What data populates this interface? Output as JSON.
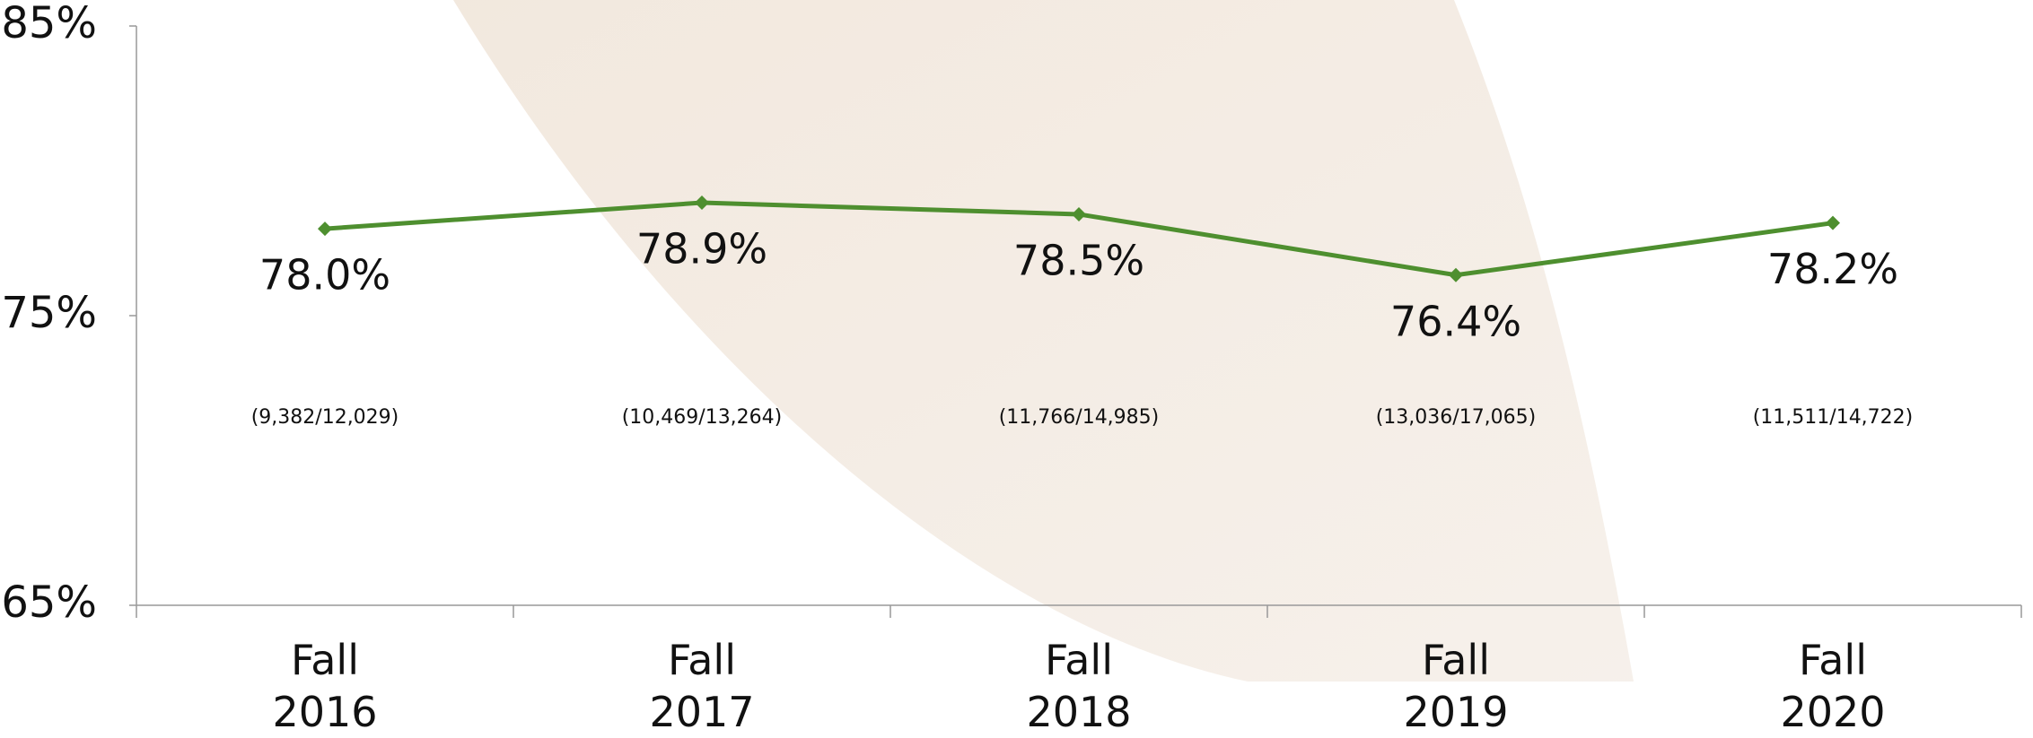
{
  "chart_data": {
    "type": "line",
    "categories": [
      "Fall 2016",
      "Fall 2017",
      "Fall 2018",
      "Fall 2019",
      "Fall 2020"
    ],
    "values": [
      78.0,
      78.9,
      78.5,
      76.4,
      78.2
    ],
    "value_labels": [
      "78.0%",
      "78.9%",
      "78.5%",
      "76.4%",
      "78.2%"
    ],
    "ratio_labels": [
      "(9,382/12,029)",
      "(10,469/13,264)",
      "(11,766/14,985)",
      "(13,036/17,065)",
      "(11,511/14,722)"
    ],
    "color": "#4e8f2f",
    "ylim": [
      65,
      85
    ],
    "yticks": [
      {
        "value": 65,
        "label": "65%"
      },
      {
        "value": 75,
        "label": "75%"
      },
      {
        "value": 85,
        "label": "85%"
      }
    ]
  }
}
